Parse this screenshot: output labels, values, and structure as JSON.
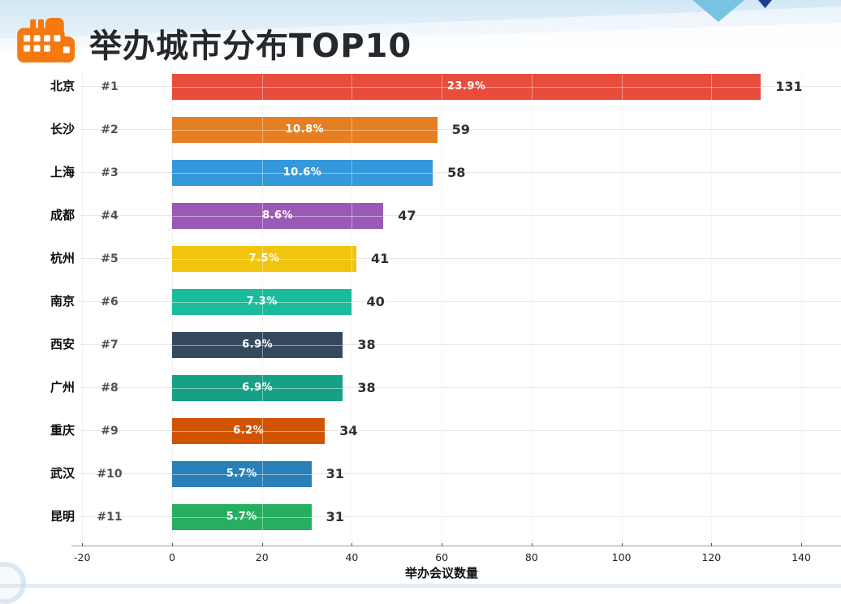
{
  "page": {
    "title": "举办城市分布TOP10"
  },
  "chart_data": {
    "type": "bar",
    "orientation": "horizontal",
    "title": "举办城市分布TOP10",
    "xlabel": "举办会议数量",
    "xlim": [
      -20,
      148
    ],
    "x_ticks": [
      "-20",
      "0",
      "20",
      "40",
      "60",
      "80",
      "100",
      "120",
      "140"
    ],
    "grid": true,
    "categories": [
      "北京",
      "长沙",
      "上海",
      "成都",
      "杭州",
      "南京",
      "西安",
      "广州",
      "重庆",
      "武汉",
      "昆明"
    ],
    "ranks": [
      "#1",
      "#2",
      "#3",
      "#4",
      "#5",
      "#6",
      "#7",
      "#8",
      "#9",
      "#10",
      "#11"
    ],
    "values": [
      131,
      59,
      58,
      47,
      41,
      40,
      38,
      38,
      34,
      31,
      31
    ],
    "percent_labels": [
      "23.9%",
      "10.8%",
      "10.6%",
      "8.6%",
      "7.5%",
      "7.3%",
      "6.9%",
      "6.9%",
      "6.2%",
      "5.7%",
      "5.7%"
    ],
    "bar_colors": [
      "#e74c3c",
      "#e67e22",
      "#3498db",
      "#9b59b6",
      "#f1c40f",
      "#1abc9c",
      "#34495e",
      "#16a085",
      "#d35400",
      "#2980b9",
      "#27ae60"
    ]
  },
  "decor": {
    "icon_name": "building-icon",
    "accent_orange": "#f4790f",
    "band_blue": "#d4e8f6",
    "triangle_light_blue": "#79c3e2",
    "triangle_navy": "#1b3e8e"
  }
}
